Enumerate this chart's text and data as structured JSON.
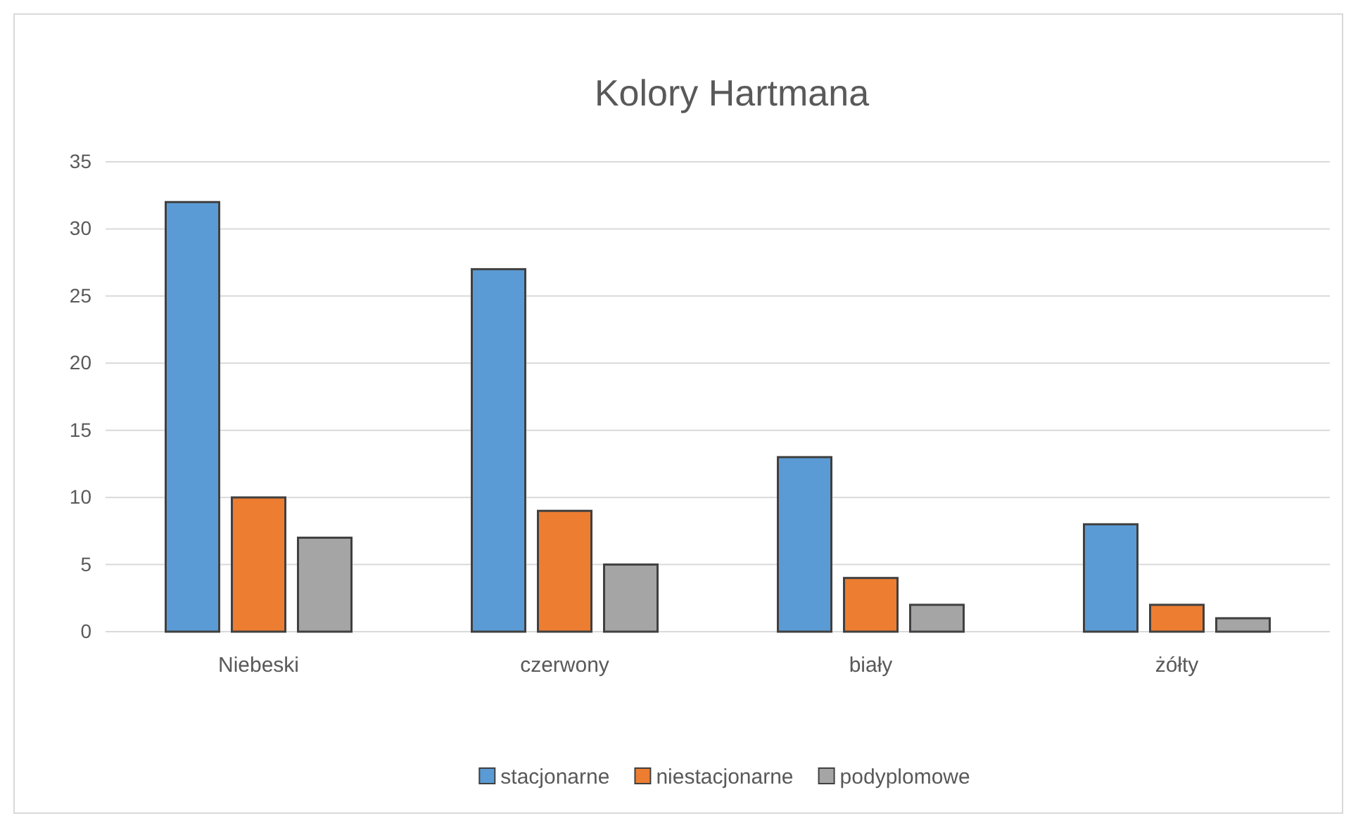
{
  "chart_data": {
    "type": "bar",
    "title": "Kolory Hartmana",
    "categories": [
      "Niebeski",
      "czerwony",
      "biały",
      "żółty"
    ],
    "series": [
      {
        "name": "stacjonarne",
        "color": "#5b9bd5",
        "values": [
          32,
          27,
          13,
          8
        ]
      },
      {
        "name": "niestacjonarne",
        "color": "#ed7d31",
        "values": [
          10,
          9,
          4,
          2
        ]
      },
      {
        "name": "podyplomowe",
        "color": "#a5a5a5",
        "values": [
          7,
          5,
          2,
          1
        ]
      }
    ],
    "ylim": [
      0,
      35
    ],
    "yticks": [
      0,
      5,
      10,
      15,
      20,
      25,
      30,
      35
    ],
    "grid": "y",
    "legend": "bottom"
  }
}
